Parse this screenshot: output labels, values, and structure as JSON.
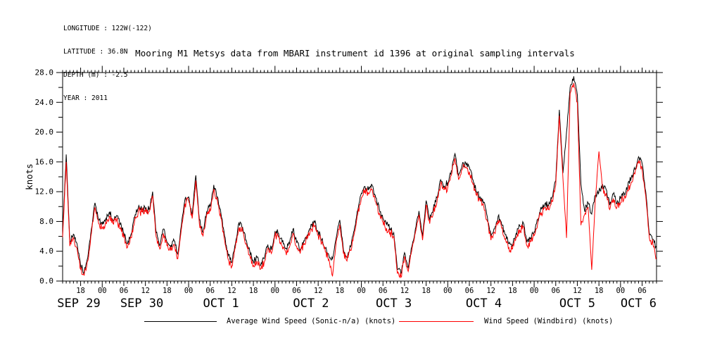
{
  "meta_block": {
    "lines": [
      "LONGITUDE : 122W(-122)",
      "LATITUDE : 36.8N",
      "DEPTH (m) : -2.5",
      "YEAR : 2011"
    ]
  },
  "title": "Mooring M1 Metsys data from MBARI instrument id 1396 at original sampling intervals",
  "colors": {
    "axis": "#000000",
    "series_avg": "#000000",
    "series_windbird": "#ff0000",
    "background": "#ffffff"
  },
  "chart_data": {
    "type": "line",
    "title": "Mooring M1 Metsys data from MBARI instrument id 1396 at original sampling intervals",
    "xlabel": "",
    "ylabel": "knots",
    "ylim": [
      0,
      28
    ],
    "y_major_step": 4,
    "y_minor_step": 2,
    "y_tick_labels": [
      "0.0",
      "4.0",
      "8.0",
      "12.0",
      "16.0",
      "20.0",
      "24.0",
      "28.0"
    ],
    "grid": false,
    "legend_position": "bottom",
    "x_hours_total": 165,
    "x_minor_step_hours": 1,
    "x_first_major_hour": 5,
    "x_major_step_hours": 6,
    "hour_labels": [
      "18",
      "00",
      "06",
      "12",
      "18",
      "00",
      "06",
      "12",
      "18",
      "00",
      "06",
      "12",
      "18",
      "00",
      "06",
      "12",
      "18",
      "00",
      "06",
      "12",
      "18",
      "00",
      "06",
      "12",
      "18",
      "00",
      "06"
    ],
    "date_labels": [
      {
        "label": "SEP 29",
        "t": 4.5
      },
      {
        "label": "SEP 30",
        "t": 22
      },
      {
        "label": "OCT 1",
        "t": 44
      },
      {
        "label": "OCT 2",
        "t": 69
      },
      {
        "label": "OCT 3",
        "t": 92
      },
      {
        "label": "OCT 4",
        "t": 117
      },
      {
        "label": "OCT 5",
        "t": 143
      },
      {
        "label": "OCT 6",
        "t": 160
      }
    ],
    "sampling_note_hours_per_point": 1,
    "series": [
      {
        "name": "Average Wind Speed (Sonic-n/a) (knots)",
        "color": "#000000",
        "values": [
          6.5,
          17.0,
          5.2,
          6.3,
          5.0,
          2.0,
          1.2,
          3.2,
          7.0,
          10.5,
          8.2,
          7.6,
          8.4,
          9.3,
          8.2,
          8.8,
          7.6,
          6.4,
          5.0,
          6.3,
          8.6,
          9.8,
          9.6,
          9.6,
          9.6,
          12.0,
          6.5,
          4.8,
          7.0,
          5.2,
          4.6,
          5.4,
          3.6,
          7.5,
          11.0,
          11.3,
          9.0,
          14.2,
          8.2,
          6.5,
          9.3,
          10.0,
          12.9,
          11.3,
          9.0,
          6.0,
          3.4,
          2.5,
          5.0,
          7.8,
          7.2,
          5.5,
          4.0,
          2.6,
          3.2,
          2.1,
          3.0,
          4.9,
          4.2,
          6.6,
          6.4,
          5.2,
          4.4,
          5.0,
          7.0,
          5.2,
          4.2,
          5.4,
          6.2,
          7.6,
          7.9,
          6.6,
          5.6,
          4.4,
          3.4,
          3.0,
          5.8,
          8.2,
          4.2,
          3.2,
          4.6,
          6.8,
          9.5,
          11.8,
          12.7,
          12.2,
          12.8,
          11.2,
          9.6,
          8.4,
          7.6,
          7.0,
          6.5,
          1.6,
          1.0,
          3.8,
          1.8,
          4.6,
          7.0,
          9.4,
          6.0,
          10.8,
          8.2,
          9.8,
          11.2,
          13.6,
          12.8,
          13.2,
          14.8,
          17.1,
          14.2,
          15.6,
          15.8,
          15.3,
          13.6,
          12.0,
          11.3,
          10.6,
          8.6,
          6.0,
          7.0,
          8.7,
          7.6,
          6.2,
          5.0,
          4.8,
          6.4,
          7.4,
          7.8,
          5.2,
          5.8,
          6.6,
          8.3,
          9.7,
          10.4,
          10.1,
          11.3,
          13.5,
          23.0,
          14.5,
          20.0,
          26.0,
          27.5,
          25.0,
          13.0,
          9.5,
          10.5,
          9.0,
          11.5,
          12.0,
          13.0,
          12.3,
          10.2,
          11.7,
          10.4,
          11.1,
          11.8,
          12.8,
          13.9,
          15.0,
          16.7,
          15.8,
          12.0,
          6.4,
          5.6,
          4.5
        ]
      },
      {
        "name": "Wind Speed (Windbird) (knots)",
        "color": "#ff0000",
        "values": [
          5.9,
          16.0,
          4.7,
          5.8,
          4.4,
          1.6,
          0.8,
          2.7,
          6.4,
          9.9,
          7.7,
          7.1,
          7.9,
          8.7,
          7.7,
          8.2,
          7.0,
          5.9,
          4.5,
          5.8,
          8.0,
          9.3,
          9.3,
          9.3,
          9.3,
          11.4,
          5.9,
          4.3,
          6.4,
          4.7,
          4.1,
          4.9,
          3.0,
          7.0,
          10.4,
          10.8,
          8.4,
          13.5,
          7.6,
          6.0,
          8.8,
          9.4,
          12.3,
          10.8,
          8.4,
          5.5,
          2.9,
          2.0,
          4.5,
          7.2,
          6.7,
          5.0,
          3.5,
          2.1,
          2.7,
          1.6,
          2.5,
          4.4,
          3.7,
          6.1,
          5.9,
          4.7,
          3.9,
          4.5,
          6.4,
          4.7,
          3.7,
          4.9,
          5.7,
          7.0,
          7.4,
          6.1,
          5.1,
          3.9,
          2.9,
          0.7,
          5.3,
          7.6,
          3.7,
          2.7,
          4.1,
          6.3,
          9.0,
          11.2,
          12.2,
          11.7,
          12.3,
          10.6,
          9.1,
          7.9,
          7.1,
          6.5,
          6.0,
          1.0,
          0.5,
          3.3,
          1.3,
          4.1,
          6.5,
          8.9,
          5.5,
          10.2,
          7.7,
          9.3,
          10.6,
          13.0,
          12.3,
          12.6,
          14.2,
          16.5,
          13.6,
          15.0,
          15.3,
          14.7,
          13.0,
          11.5,
          10.8,
          10.0,
          8.0,
          5.5,
          6.5,
          8.2,
          7.1,
          5.7,
          4.5,
          4.3,
          5.9,
          6.9,
          7.3,
          4.7,
          5.3,
          6.1,
          7.8,
          9.2,
          9.9,
          9.6,
          10.7,
          12.9,
          22.2,
          13.8,
          5.8,
          25.2,
          26.6,
          24.0,
          7.5,
          8.9,
          9.9,
          1.5,
          10.9,
          17.4,
          12.4,
          11.8,
          9.6,
          11.1,
          9.9,
          10.5,
          11.2,
          12.2,
          13.3,
          14.4,
          16.1,
          15.1,
          11.4,
          5.8,
          5.0,
          3.0
        ]
      }
    ]
  },
  "legend": {
    "items": [
      {
        "label": "Average Wind Speed (Sonic-n/a) (knots)",
        "color": "#000000"
      },
      {
        "label": "Wind Speed (Windbird) (knots)",
        "color": "#ff0000"
      }
    ]
  }
}
